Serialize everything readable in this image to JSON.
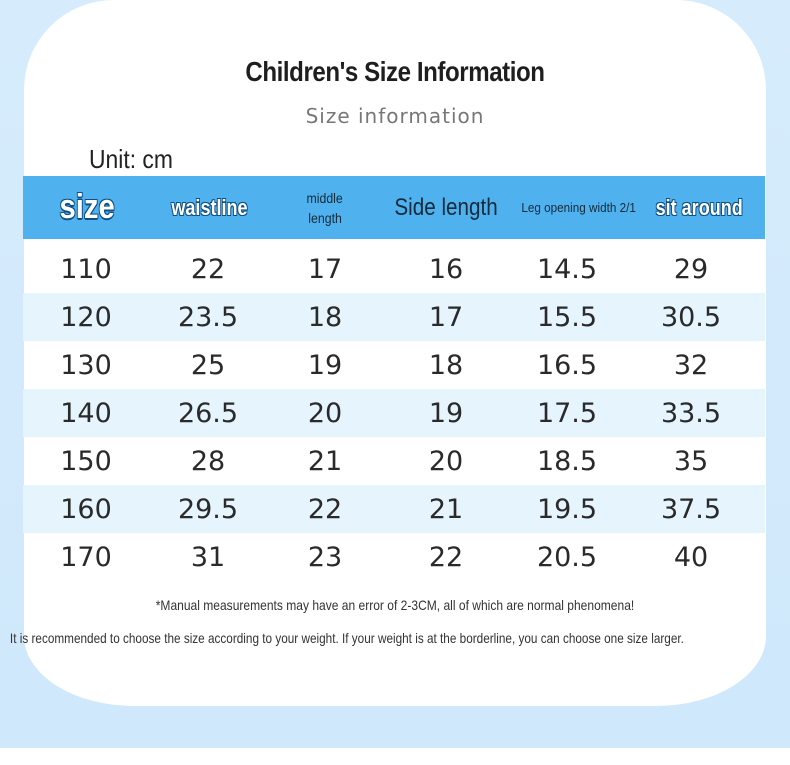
{
  "title": "Children's Size Information",
  "subtitle": "Size information",
  "unit": "Unit: cm",
  "headers": [
    "size",
    "waistline",
    "middle length",
    "Side length",
    "Leg opening width 2/1",
    "sit around"
  ],
  "header_lines": {
    "middle": [
      "middle",
      "length"
    ]
  },
  "rows": [
    [
      "110",
      "22",
      "17",
      "16",
      "14.5",
      "29"
    ],
    [
      "120",
      "23.5",
      "18",
      "17",
      "15.5",
      "30.5"
    ],
    [
      "130",
      "25",
      "19",
      "18",
      "16.5",
      "32"
    ],
    [
      "140",
      "26.5",
      "20",
      "19",
      "17.5",
      "33.5"
    ],
    [
      "150",
      "28",
      "21",
      "20",
      "18.5",
      "35"
    ],
    [
      "160",
      "29.5",
      "22",
      "21",
      "19.5",
      "37.5"
    ],
    [
      "170",
      "31",
      "23",
      "22",
      "20.5",
      "40"
    ]
  ],
  "notes": [
    "*Manual measurements may have an error of 2-3CM, all of which are normal phenomena!",
    "It is recommended to choose the size according to your weight. If your weight is at the borderline, you can choose one size larger."
  ],
  "colors": {
    "header": "#4fb2ef",
    "stripe": "#e5f4fd",
    "background": "#d6ecfc"
  }
}
